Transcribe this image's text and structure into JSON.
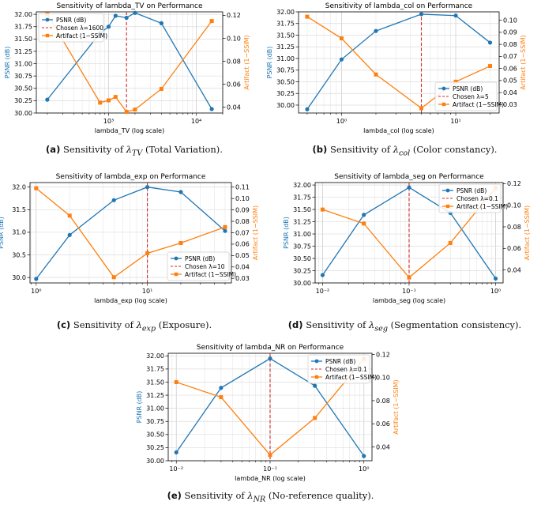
{
  "colors": {
    "psnr": "#1f77b4",
    "artifact": "#ff7f0e",
    "chosen": "#d62728",
    "grid": "#dddddd",
    "axis": "#000000"
  },
  "chart_data": [
    {
      "id": "a",
      "type": "line",
      "xscale": "log",
      "title": "Sensitivity of lambda_TV on Performance",
      "xlabel": "lambda_TV (log scale)",
      "ylabel": "PSNR (dB)",
      "y2label": "Artifact (1−SSIM)",
      "xlim": [
        150,
        20000
      ],
      "ylim": [
        30.0,
        32.05
      ],
      "y2lim": [
        0.035,
        0.123
      ],
      "xticks": [
        1000,
        10000
      ],
      "xtick_labels": [
        "10³",
        "10⁴"
      ],
      "yticks": [
        30.0,
        30.25,
        30.5,
        30.75,
        31.0,
        31.25,
        31.5,
        31.75,
        32.0
      ],
      "ytick_labels": [
        "30.00",
        "30.25",
        "30.50",
        "30.75",
        "31.00",
        "31.25",
        "31.50",
        "31.75",
        "32.00"
      ],
      "y2ticks": [
        0.04,
        0.06,
        0.08,
        0.1,
        0.12
      ],
      "y2tick_labels": [
        "0.04",
        "0.06",
        "0.08",
        "0.10",
        "0.12"
      ],
      "x": [
        200,
        800,
        1000,
        1200,
        1600,
        2000,
        4000,
        15000
      ],
      "psnr": [
        30.27,
        31.62,
        31.75,
        31.97,
        31.93,
        32.03,
        31.82,
        30.08
      ],
      "artifact": [
        0.121,
        0.044,
        0.046,
        0.049,
        0.036,
        0.038,
        0.056,
        0.115
      ],
      "chosen": 1600,
      "legend": [
        "PSNR (dB)",
        "Chosen λ=1600",
        "Artifact (1−SSIM)"
      ],
      "legend_loc": "upper-left",
      "caption": {
        "label": "(a)",
        "prefix": "Sensitivity of ",
        "symbol": "λ",
        "sub": "TV",
        "suffix": " (Total Variation)."
      }
    },
    {
      "id": "b",
      "type": "line",
      "xscale": "log",
      "title": "Sensitivity of lambda_col on Performance",
      "xlabel": "lambda_col (log scale)",
      "ylabel": "PSNR (dB)",
      "y2label": "Artifact (1−SSIM)",
      "xlim": [
        0.42,
        24
      ],
      "ylim": [
        29.83,
        32.0
      ],
      "y2lim": [
        0.023,
        0.107
      ],
      "xticks": [
        1,
        10
      ],
      "xtick_labels": [
        "10⁰",
        "10¹"
      ],
      "yticks": [
        30.0,
        30.25,
        30.5,
        30.75,
        31.0,
        31.25,
        31.5,
        31.75,
        32.0
      ],
      "ytick_labels": [
        "30.00",
        "30.25",
        "30.50",
        "30.75",
        "31.00",
        "31.25",
        "31.50",
        "31.75",
        "32.00"
      ],
      "y2ticks": [
        0.03,
        0.04,
        0.05,
        0.06,
        0.07,
        0.08,
        0.09,
        0.1
      ],
      "y2tick_labels": [
        "0.03",
        "0.04",
        "0.05",
        "0.06",
        "0.07",
        "0.08",
        "0.09",
        "0.10"
      ],
      "x": [
        0.5,
        1,
        2,
        5,
        10,
        20
      ],
      "psnr": [
        29.91,
        30.98,
        31.59,
        31.95,
        31.92,
        31.34
      ],
      "artifact": [
        0.103,
        0.085,
        0.055,
        0.027,
        0.049,
        0.062
      ],
      "chosen": 5,
      "legend": [
        "PSNR (dB)",
        "Chosen λ=5",
        "Artifact (1−SSIM)"
      ],
      "legend_loc": "lower-right",
      "caption": {
        "label": "(b)",
        "prefix": "Sensitivity of ",
        "symbol": "λ",
        "sub": "col",
        "suffix": " (Color constancy)."
      }
    },
    {
      "id": "c",
      "type": "line",
      "xscale": "log",
      "title": "Sensitivity of lambda_exp on Performance",
      "xlabel": "lambda_exp (log scale)",
      "ylabel": "PSNR (dB)",
      "y2label": "Artifact (1−SSIM)",
      "xlim": [
        0.88,
        57
      ],
      "ylim": [
        29.88,
        32.1
      ],
      "y2lim": [
        0.026,
        0.114
      ],
      "xticks": [
        1,
        10
      ],
      "xtick_labels": [
        "10⁰",
        "10¹"
      ],
      "yticks": [
        30.0,
        30.5,
        31.0,
        31.5,
        32.0
      ],
      "ytick_labels": [
        "30.0",
        "30.5",
        "31.0",
        "31.5",
        "32.0"
      ],
      "y2ticks": [
        0.03,
        0.04,
        0.05,
        0.06,
        0.07,
        0.08,
        0.09,
        0.1,
        0.11
      ],
      "y2tick_labels": [
        "0.03",
        "0.04",
        "0.05",
        "0.06",
        "0.07",
        "0.08",
        "0.09",
        "0.10",
        "0.11"
      ],
      "x": [
        1,
        2,
        5,
        10,
        20,
        50
      ],
      "psnr": [
        29.97,
        30.94,
        31.71,
        32.0,
        31.89,
        31.03
      ],
      "artifact": [
        0.109,
        0.085,
        0.031,
        0.052,
        0.061,
        0.075
      ],
      "chosen": 10,
      "legend": [
        "PSNR (dB)",
        "Chosen λ=10",
        "Artifact (1−SSIM)"
      ],
      "legend_loc": "lower-right",
      "caption": {
        "label": "(c)",
        "prefix": "Sensitivity of ",
        "symbol": "λ",
        "sub": "exp",
        "suffix": " (Exposure)."
      }
    },
    {
      "id": "d",
      "type": "line",
      "xscale": "log",
      "title": "Sensitivity of lambda_seg on Performance",
      "xlabel": "lambda_seg (log scale)",
      "ylabel": "PSNR (dB)",
      "y2label": "Artifact (1−SSIM)",
      "xlim": [
        0.0082,
        1.22
      ],
      "ylim": [
        30.0,
        32.05
      ],
      "y2lim": [
        0.028,
        0.121
      ],
      "xticks": [
        0.01,
        0.1,
        1
      ],
      "xtick_labels": [
        "10⁻²",
        "10⁻¹",
        "10⁰"
      ],
      "yticks": [
        30.0,
        30.25,
        30.5,
        30.75,
        31.0,
        31.25,
        31.5,
        31.75,
        32.0
      ],
      "ytick_labels": [
        "30.00",
        "30.25",
        "30.50",
        "30.75",
        "31.00",
        "31.25",
        "31.50",
        "31.75",
        "32.00"
      ],
      "y2ticks": [
        0.04,
        0.06,
        0.08,
        0.1,
        0.12
      ],
      "y2tick_labels": [
        "0.04",
        "0.06",
        "0.08",
        "0.10",
        "0.12"
      ],
      "x": [
        0.01,
        0.03,
        0.1,
        0.3,
        1
      ],
      "psnr": [
        30.16,
        31.39,
        31.95,
        31.43,
        30.09
      ],
      "artifact": [
        0.096,
        0.083,
        0.033,
        0.065,
        0.116
      ],
      "chosen": 0.1,
      "legend": [
        "PSNR (dB)",
        "Chosen λ=0.1",
        "Artifact (1−SSIM)"
      ],
      "legend_loc": "upper-right",
      "caption": {
        "label": "(d)",
        "prefix": "Sensitivity of ",
        "symbol": "λ",
        "sub": "seg",
        "suffix": " (Segmentation consistency)."
      }
    },
    {
      "id": "e",
      "type": "line",
      "xscale": "log",
      "title": "Sensitivity of lambda_NR on Performance",
      "xlabel": "lambda_NR (log scale)",
      "ylabel": "PSNR (dB)",
      "y2label": "Artifact (1−SSIM)",
      "xlim": [
        0.0082,
        1.22
      ],
      "ylim": [
        30.0,
        32.05
      ],
      "y2lim": [
        0.028,
        0.121
      ],
      "xticks": [
        0.01,
        0.1,
        1
      ],
      "xtick_labels": [
        "10⁻²",
        "10⁻¹",
        "10⁰"
      ],
      "yticks": [
        30.0,
        30.25,
        30.5,
        30.75,
        31.0,
        31.25,
        31.5,
        31.75,
        32.0
      ],
      "ytick_labels": [
        "30.00",
        "30.25",
        "30.50",
        "30.75",
        "31.00",
        "31.25",
        "31.50",
        "31.75",
        "32.00"
      ],
      "y2ticks": [
        0.04,
        0.06,
        0.08,
        0.1,
        0.12
      ],
      "y2tick_labels": [
        "0.04",
        "0.06",
        "0.08",
        "0.10",
        "0.12"
      ],
      "x": [
        0.01,
        0.03,
        0.1,
        0.3,
        1
      ],
      "psnr": [
        30.16,
        31.39,
        31.95,
        31.43,
        30.09
      ],
      "artifact": [
        0.096,
        0.083,
        0.033,
        0.065,
        0.116
      ],
      "chosen": 0.1,
      "legend": [
        "PSNR (dB)",
        "Chosen λ=0.1",
        "Artifact (1−SSIM)"
      ],
      "legend_loc": "upper-right",
      "caption": {
        "label": "(e)",
        "prefix": "Sensitivity of ",
        "symbol": "λ",
        "sub": "NR",
        "suffix": " (No-reference quality)."
      }
    }
  ]
}
